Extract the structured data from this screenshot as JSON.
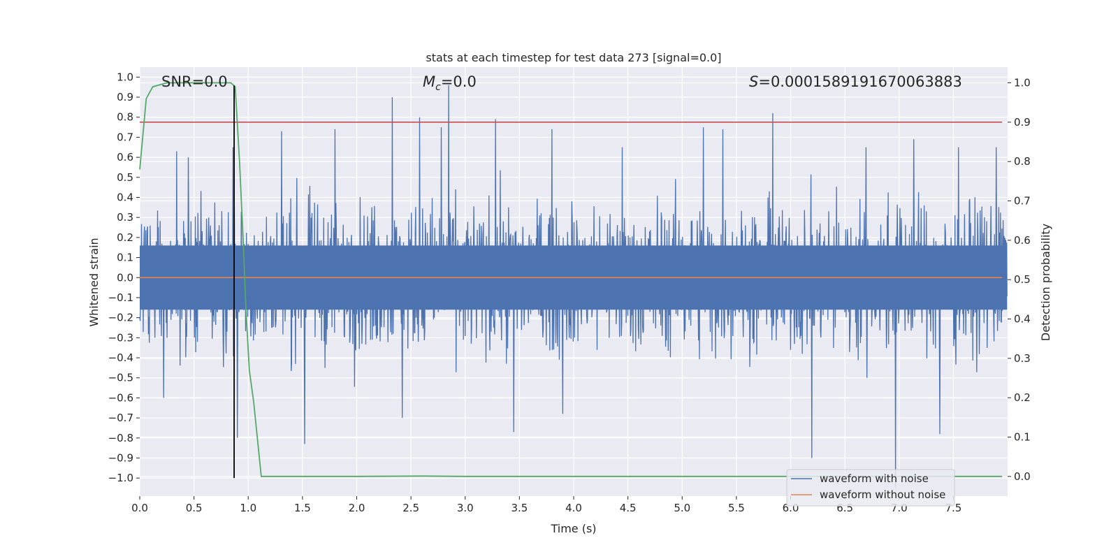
{
  "chart_data": {
    "type": "line",
    "title": "stats at each timestep for test data 273 [signal=0.0]",
    "xlabel": "Time (s)",
    "ylabel_left": "Whitened strain",
    "ylabel_right": "Detection probability",
    "xlim": [
      0.0,
      8.0
    ],
    "ylim_left": [
      -1.09,
      1.05
    ],
    "ylim_right": [
      -0.05,
      1.04
    ],
    "x_ticks": [
      "0.0",
      "0.5",
      "1.0",
      "1.5",
      "2.0",
      "2.5",
      "3.0",
      "3.5",
      "4.0",
      "4.5",
      "5.0",
      "5.5",
      "6.0",
      "6.5",
      "7.0",
      "7.5"
    ],
    "y_ticks_left": [
      "1.0",
      "0.9",
      "0.8",
      "0.7",
      "0.6",
      "0.5",
      "0.4",
      "0.3",
      "0.2",
      "0.1",
      "0.0",
      "−0.1",
      "−0.2",
      "−0.3",
      "−0.4",
      "−0.5",
      "−0.6",
      "−0.7",
      "−0.8",
      "−0.9",
      "−1.0"
    ],
    "y_ticks_right": [
      "1.0",
      "0.9",
      "0.8",
      "0.7",
      "0.6",
      "0.5",
      "0.4",
      "0.3",
      "0.2",
      "0.1",
      "0.0"
    ],
    "grid": true,
    "legend_position": "lower-right",
    "annotations": {
      "snr": "SNR=0.0",
      "mc_symbol": "M",
      "mc_sub": "c",
      "mc_value": "=0.0",
      "s_symbol": "S",
      "s_value": "=0.0001589191670063883"
    },
    "series": [
      {
        "name": "waveform with noise",
        "color": "#4c72b0",
        "axis": "left",
        "description_stats": {
          "typical_max": 0.45,
          "typical_min": -0.45
        },
        "peaks_x": [
          0.34,
          0.45,
          0.86,
          1.31,
          1.8,
          2.33,
          2.58,
          2.78,
          2.85,
          3.28,
          3.8,
          4.45,
          5.2,
          5.38,
          5.84,
          6.7,
          7.14,
          7.55,
          7.9
        ],
        "peaks_y": [
          0.63,
          0.6,
          0.65,
          0.73,
          0.74,
          0.9,
          0.8,
          0.75,
          0.96,
          0.79,
          0.74,
          0.65,
          0.75,
          0.74,
          0.82,
          0.65,
          0.69,
          0.65,
          0.65
        ],
        "troughs_x": [
          0.22,
          0.9,
          1.52,
          2.42,
          3.45,
          3.9,
          6.2,
          6.97,
          7.38
        ],
        "troughs_y": [
          -0.6,
          -0.8,
          -0.83,
          -0.7,
          -0.77,
          -0.68,
          -0.9,
          -1.05,
          -0.78
        ]
      },
      {
        "name": "waveform without noise",
        "color": "#dd8452",
        "axis": "left",
        "x": [
          0.0,
          7.95
        ],
        "y": [
          0.0,
          0.0
        ]
      },
      {
        "name": "detection probability",
        "color": "#55a868",
        "axis": "right",
        "x": [
          0.0,
          0.06,
          0.12,
          0.25,
          0.5,
          0.75,
          0.84,
          0.88,
          0.92,
          0.95,
          0.98,
          1.01,
          1.05,
          1.12,
          1.5,
          2.0,
          2.6,
          3.0,
          4.0,
          5.0,
          6.0,
          7.0,
          7.95
        ],
        "y": [
          0.78,
          0.96,
          0.99,
          1.0,
          1.0,
          1.0,
          1.0,
          0.99,
          0.8,
          0.62,
          0.42,
          0.27,
          0.19,
          0.0,
          0.0,
          0.0,
          0.001,
          0.0,
          0.0,
          0.0,
          0.0,
          0.0,
          0.0
        ]
      }
    ],
    "threshold": {
      "value": 0.9,
      "axis": "right",
      "color": "#c44e52"
    },
    "marker_time": {
      "x": 0.87,
      "y_top": 1.0,
      "y_bottom": -1.0,
      "color": "#000000"
    }
  }
}
